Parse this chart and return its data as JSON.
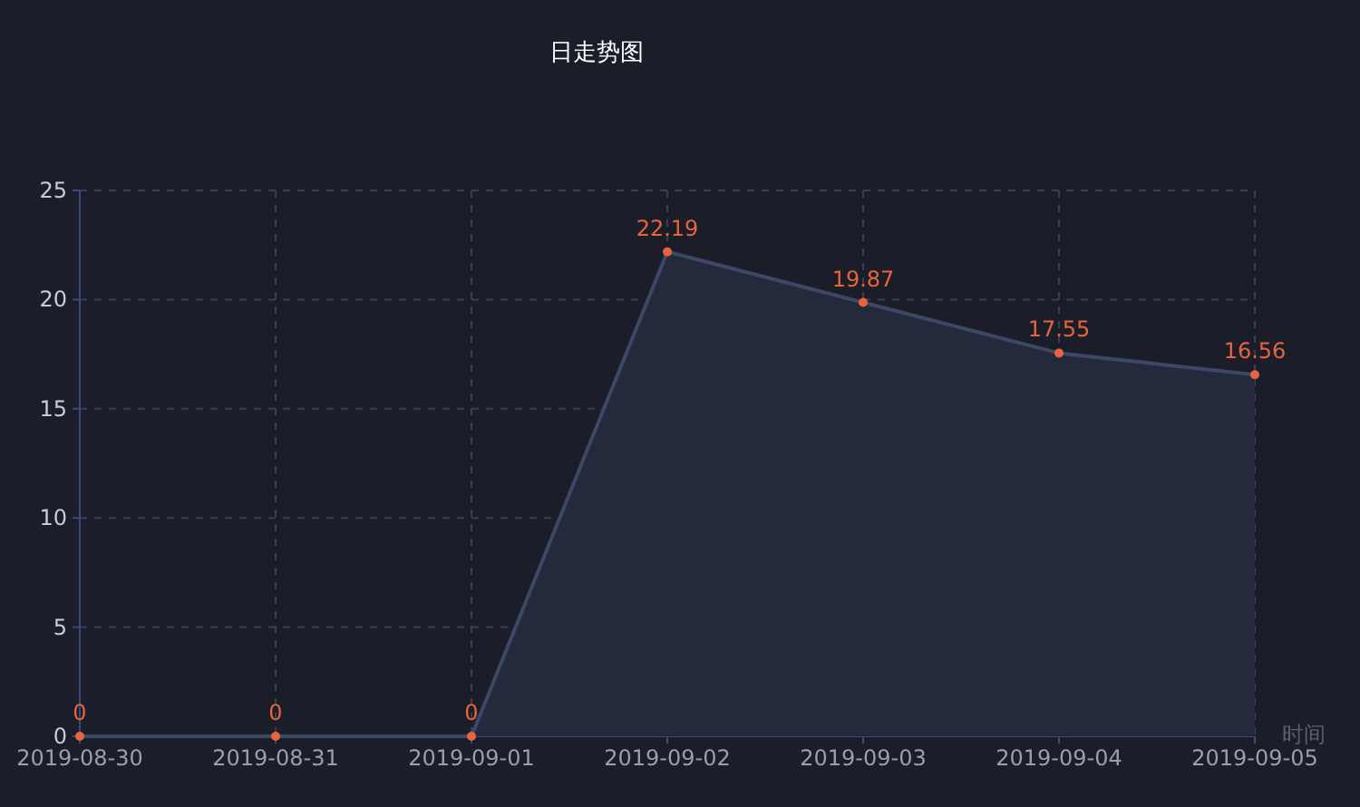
{
  "chart_data": {
    "type": "area",
    "title": "日走势图",
    "xlabel": "时间",
    "categories": [
      "2019-08-30",
      "2019-08-31",
      "2019-09-01",
      "2019-09-02",
      "2019-09-03",
      "2019-09-04",
      "2019-09-05"
    ],
    "series": [
      {
        "color": "#3d4766",
        "values": [
          0,
          0,
          0,
          22.19,
          19.87,
          17.55,
          16.56
        ]
      }
    ],
    "ylim": [
      0,
      25
    ],
    "yticks": [
      0,
      5,
      10,
      15,
      20,
      25
    ],
    "grid": true,
    "data_labels": true,
    "marker": "circle"
  }
}
